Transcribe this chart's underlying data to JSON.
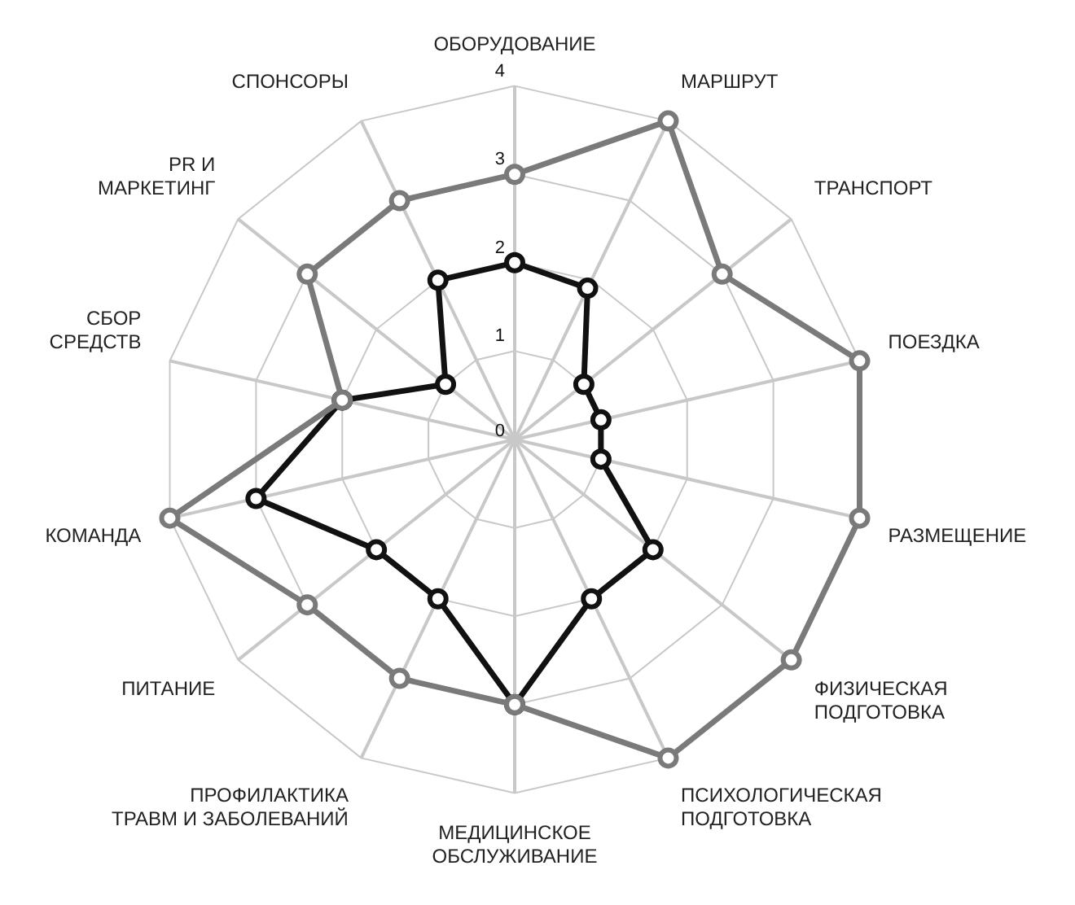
{
  "chart_data": {
    "type": "radar",
    "categories": [
      "ОБОРУДОВАНИЕ",
      "МАРШРУТ",
      "ТРАНСПОРТ",
      "ПОЕЗДКА",
      "РАЗМЕЩЕНИЕ",
      "ФИЗИЧЕСКАЯ ПОДГОТОВКА",
      "ПСИХОЛОГИЧЕСКАЯ ПОДГОТОВКА",
      "МЕДИЦИНСКОЕ ОБСЛУЖИВАНИЕ",
      "ПРОФИЛАКТИКА ТРАВМ И ЗАБОЛЕВАНИЙ",
      "ПИТАНИЕ",
      "КОМАНДА",
      "СБОР СРЕДСТВ",
      "PR И МАРКЕТИНГ",
      "СПОНСОРЫ"
    ],
    "series": [
      {
        "color": "#7a7a7a",
        "values": [
          3,
          4,
          3,
          4,
          4,
          4,
          4,
          3,
          3,
          3,
          4,
          2,
          3,
          3
        ]
      },
      {
        "color": "#111111",
        "values": [
          2,
          1.9,
          1,
          1,
          1,
          2,
          2,
          3,
          2,
          2,
          3,
          2,
          1,
          2
        ]
      }
    ],
    "ylim": [
      0,
      4
    ],
    "yticks": [
      0,
      1,
      2,
      3,
      4
    ],
    "grid": true,
    "legend": false,
    "marker": "circle",
    "line_style": "solid"
  }
}
